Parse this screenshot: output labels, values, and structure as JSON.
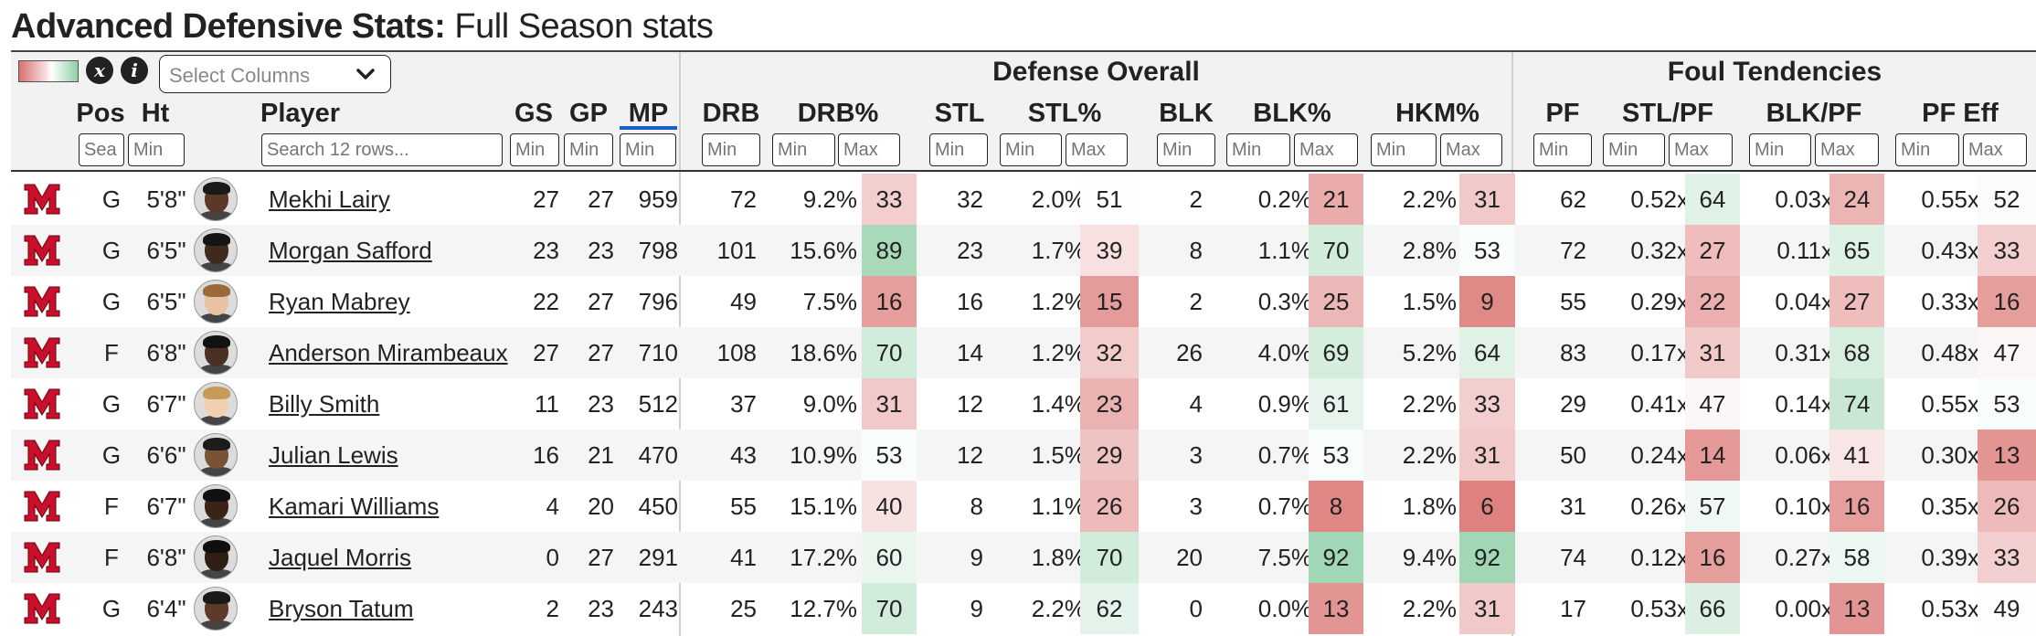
{
  "title": {
    "bold": "Advanced Defensive Stats:",
    "rest": "Full Season stats"
  },
  "controls": {
    "clear_label": "x",
    "info_label": "i",
    "select_columns_placeholder": "Select Columns",
    "search_placeholder": "Search 12 rows...",
    "min_placeholder": "Min",
    "max_placeholder": "Max",
    "pos_filter_placeholder": "Sea"
  },
  "groups": {
    "defense": "Defense Overall",
    "fouls": "Foul Tendencies"
  },
  "columns": {
    "pos": "Pos",
    "ht": "Ht",
    "player": "Player",
    "gs": "GS",
    "gp": "GP",
    "mp": "MP",
    "drb": "DRB",
    "drbp": "DRB%",
    "stl": "STL",
    "stlp": "STL%",
    "blk": "BLK",
    "blkp": "BLK%",
    "hkm": "HKM%",
    "pf": "PF",
    "stlpf": "STL/PF",
    "blkpf": "BLK/PF",
    "pfeff": "PF Eff"
  },
  "colors": {
    "red": "#d9706e",
    "green": "#8fcfa6",
    "row_alt": "#f5f5f5",
    "header_bg": "#f2f2f2",
    "sort_accent": "#1a5fc8",
    "team_red": "#c8102e"
  },
  "rows": [
    {
      "team_logo": "miami-m-logo",
      "pos": "G",
      "ht": "5'8\"",
      "player": "Mekhi Lairy",
      "gs": "27",
      "gp": "27",
      "mp": "959",
      "drb": "72",
      "drbp": "9.2%",
      "drbp_rk": "33",
      "stl": "32",
      "stlp": "2.0%",
      "stlp_rk": "51",
      "blk": "2",
      "blkp": "0.2%",
      "blkp_rk": "21",
      "hkm": "2.2%",
      "hkm_rk": "31",
      "pf": "62",
      "stlpf": "0.52x",
      "stlpf_rk": "64",
      "blkpf": "0.03x",
      "blkpf_rk": "24",
      "pfeff": "0.55x",
      "pfeff_rk": "52"
    },
    {
      "team_logo": "miami-m-logo",
      "pos": "G",
      "ht": "6'5\"",
      "player": "Morgan Safford",
      "gs": "23",
      "gp": "23",
      "mp": "798",
      "drb": "101",
      "drbp": "15.6%",
      "drbp_rk": "89",
      "stl": "23",
      "stlp": "1.7%",
      "stlp_rk": "39",
      "blk": "8",
      "blkp": "1.1%",
      "blkp_rk": "70",
      "hkm": "2.8%",
      "hkm_rk": "53",
      "pf": "72",
      "stlpf": "0.32x",
      "stlpf_rk": "27",
      "blkpf": "0.11x",
      "blkpf_rk": "65",
      "pfeff": "0.43x",
      "pfeff_rk": "33"
    },
    {
      "team_logo": "miami-m-logo",
      "pos": "G",
      "ht": "6'5\"",
      "player": "Ryan Mabrey",
      "gs": "22",
      "gp": "27",
      "mp": "796",
      "drb": "49",
      "drbp": "7.5%",
      "drbp_rk": "16",
      "stl": "16",
      "stlp": "1.2%",
      "stlp_rk": "15",
      "blk": "2",
      "blkp": "0.3%",
      "blkp_rk": "25",
      "hkm": "1.5%",
      "hkm_rk": "9",
      "pf": "55",
      "stlpf": "0.29x",
      "stlpf_rk": "22",
      "blkpf": "0.04x",
      "blkpf_rk": "27",
      "pfeff": "0.33x",
      "pfeff_rk": "16"
    },
    {
      "team_logo": "miami-m-logo",
      "pos": "F",
      "ht": "6'8\"",
      "player": "Anderson Mirambeaux",
      "gs": "27",
      "gp": "27",
      "mp": "710",
      "drb": "108",
      "drbp": "18.6%",
      "drbp_rk": "70",
      "stl": "14",
      "stlp": "1.2%",
      "stlp_rk": "32",
      "blk": "26",
      "blkp": "4.0%",
      "blkp_rk": "69",
      "hkm": "5.2%",
      "hkm_rk": "64",
      "pf": "83",
      "stlpf": "0.17x",
      "stlpf_rk": "31",
      "blkpf": "0.31x",
      "blkpf_rk": "68",
      "pfeff": "0.48x",
      "pfeff_rk": "47"
    },
    {
      "team_logo": "miami-m-logo",
      "pos": "G",
      "ht": "6'7\"",
      "player": "Billy Smith",
      "gs": "11",
      "gp": "23",
      "mp": "512",
      "drb": "37",
      "drbp": "9.0%",
      "drbp_rk": "31",
      "stl": "12",
      "stlp": "1.4%",
      "stlp_rk": "23",
      "blk": "4",
      "blkp": "0.9%",
      "blkp_rk": "61",
      "hkm": "2.2%",
      "hkm_rk": "33",
      "pf": "29",
      "stlpf": "0.41x",
      "stlpf_rk": "47",
      "blkpf": "0.14x",
      "blkpf_rk": "74",
      "pfeff": "0.55x",
      "pfeff_rk": "53"
    },
    {
      "team_logo": "miami-m-logo",
      "pos": "G",
      "ht": "6'6\"",
      "player": "Julian Lewis",
      "gs": "16",
      "gp": "21",
      "mp": "470",
      "drb": "43",
      "drbp": "10.9%",
      "drbp_rk": "53",
      "stl": "12",
      "stlp": "1.5%",
      "stlp_rk": "29",
      "blk": "3",
      "blkp": "0.7%",
      "blkp_rk": "53",
      "hkm": "2.2%",
      "hkm_rk": "31",
      "pf": "50",
      "stlpf": "0.24x",
      "stlpf_rk": "14",
      "blkpf": "0.06x",
      "blkpf_rk": "41",
      "pfeff": "0.30x",
      "pfeff_rk": "13"
    },
    {
      "team_logo": "miami-m-logo",
      "pos": "F",
      "ht": "6'7\"",
      "player": "Kamari Williams",
      "gs": "4",
      "gp": "20",
      "mp": "450",
      "drb": "55",
      "drbp": "15.1%",
      "drbp_rk": "40",
      "stl": "8",
      "stlp": "1.1%",
      "stlp_rk": "26",
      "blk": "3",
      "blkp": "0.7%",
      "blkp_rk": "8",
      "hkm": "1.8%",
      "hkm_rk": "6",
      "pf": "31",
      "stlpf": "0.26x",
      "stlpf_rk": "57",
      "blkpf": "0.10x",
      "blkpf_rk": "16",
      "pfeff": "0.35x",
      "pfeff_rk": "26"
    },
    {
      "team_logo": "miami-m-logo",
      "pos": "F",
      "ht": "6'8\"",
      "player": "Jaquel Morris",
      "gs": "0",
      "gp": "27",
      "mp": "291",
      "drb": "41",
      "drbp": "17.2%",
      "drbp_rk": "60",
      "stl": "9",
      "stlp": "1.8%",
      "stlp_rk": "70",
      "blk": "20",
      "blkp": "7.5%",
      "blkp_rk": "92",
      "hkm": "9.4%",
      "hkm_rk": "92",
      "pf": "74",
      "stlpf": "0.12x",
      "stlpf_rk": "16",
      "blkpf": "0.27x",
      "blkpf_rk": "58",
      "pfeff": "0.39x",
      "pfeff_rk": "33"
    },
    {
      "team_logo": "miami-m-logo",
      "pos": "G",
      "ht": "6'4\"",
      "player": "Bryson Tatum",
      "gs": "2",
      "gp": "23",
      "mp": "243",
      "drb": "25",
      "drbp": "12.7%",
      "drbp_rk": "70",
      "stl": "9",
      "stlp": "2.2%",
      "stlp_rk": "62",
      "blk": "0",
      "blkp": "0.0%",
      "blkp_rk": "13",
      "hkm": "2.2%",
      "hkm_rk": "31",
      "pf": "17",
      "stlpf": "0.53x",
      "stlpf_rk": "66",
      "blkpf": "0.00x",
      "blkpf_rk": "13",
      "pfeff": "0.53x",
      "pfeff_rk": "49"
    }
  ]
}
